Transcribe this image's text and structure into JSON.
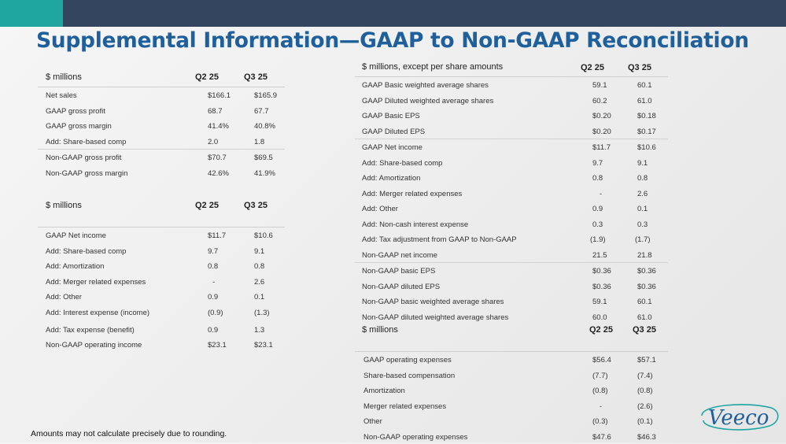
{
  "title": "Supplemental Information—GAAP to Non-GAAP Reconciliation",
  "footnote": "Amounts may not calculate precisely due to rounding.",
  "logo": "Veeco",
  "colors": {
    "header_bar": "#34455f",
    "accent": "#1fa6a0",
    "title": "#1f5f9b"
  },
  "gross_profit_table": {
    "header": {
      "label": "$ millions",
      "col1": "Q2 25",
      "col2": "Q3 25"
    },
    "rows": [
      {
        "label": "Net sales",
        "v1": "$166.1",
        "v2": "$165.9"
      },
      {
        "label": "GAAP gross profit",
        "v1": "68.7",
        "v2": "67.7"
      },
      {
        "label": "GAAP gross margin",
        "v1": "41.4%",
        "v2": "40.8%"
      },
      {
        "label": "Add: Share-based comp",
        "v1": "2.0",
        "v2": "1.8"
      },
      {
        "label": "Non-GAAP gross profit",
        "v1": "$70.7",
        "v2": "$69.5"
      },
      {
        "label": "Non-GAAP gross margin",
        "v1": "42.6%",
        "v2": "41.9%"
      }
    ]
  },
  "operating_income_table": {
    "header": {
      "label": "$ millions",
      "col1": "Q2 25",
      "col2": "Q3 25"
    },
    "rows": [
      {
        "label": "GAAP Net income",
        "v1": "$11.7",
        "v2": "$10.6"
      },
      {
        "label": "Add: Share-based comp",
        "v1": "9.7",
        "v2": "9.1"
      },
      {
        "label": "Add: Amortization",
        "v1": "0.8",
        "v2": "0.8"
      },
      {
        "label": "Add: Merger related expenses",
        "v1": "-",
        "v2": "2.6"
      },
      {
        "label": "Add: Other",
        "v1": "0.9",
        "v2": "0.1"
      },
      {
        "label": "Add: Interest expense (income)",
        "v1": "(0.9)",
        "v2": "(1.3)"
      },
      {
        "label": "Add: Tax expense (benefit)",
        "v1": "0.9",
        "v2": "1.3"
      },
      {
        "label": "Non-GAAP operating income",
        "v1": "$23.1",
        "v2": "$23.1"
      }
    ]
  },
  "net_income_table": {
    "header": {
      "label": "$ millions, except per share amounts",
      "col1": "Q2 25",
      "col2": "Q3 25"
    },
    "rows": [
      {
        "label": "GAAP Basic weighted average shares",
        "v1": "59.1",
        "v2": "60.1"
      },
      {
        "label": "GAAP Diluted weighted average shares",
        "v1": "60.2",
        "v2": "61.0"
      },
      {
        "label": "GAAP Basic EPS",
        "v1": "$0.20",
        "v2": "$0.18"
      },
      {
        "label": "GAAP Diluted EPS",
        "v1": "$0.20",
        "v2": "$0.17"
      },
      {
        "label": "GAAP Net income",
        "v1": "$11.7",
        "v2": "$10.6"
      },
      {
        "label": "Add: Share-based comp",
        "v1": "9.7",
        "v2": "9.1"
      },
      {
        "label": "Add: Amortization",
        "v1": "0.8",
        "v2": "0.8"
      },
      {
        "label": "Add: Merger related expenses",
        "v1": "-",
        "v2": "2.6"
      },
      {
        "label": "Add: Other",
        "v1": "0.9",
        "v2": "0.1"
      },
      {
        "label": "Add: Non-cash interest expense",
        "v1": "0.3",
        "v2": "0.3"
      },
      {
        "label": "Add: Tax adjustment from GAAP to Non-GAAP",
        "v1": "(1.9)",
        "v2": "(1.7)"
      },
      {
        "label": "Non-GAAP net income",
        "v1": "21.5",
        "v2": "21.8"
      },
      {
        "label": "Non-GAAP basic EPS",
        "v1": "$0.36",
        "v2": "$0.36"
      },
      {
        "label": "Non-GAAP diluted EPS",
        "v1": "$0.36",
        "v2": "$0.36"
      },
      {
        "label": "Non-GAAP basic weighted average shares",
        "v1": "59.1",
        "v2": "60.1"
      },
      {
        "label": "Non-GAAP diluted weighted average shares",
        "v1": "60.0",
        "v2": "61.0"
      }
    ]
  },
  "operating_expenses_table": {
    "header": {
      "label": "$ millions",
      "col1": "Q2 25",
      "col2": "Q3 25"
    },
    "rows": [
      {
        "label": "GAAP operating expenses",
        "v1": "$56.4",
        "v2": "$57.1"
      },
      {
        "label": "Share-based compensation",
        "v1": "(7.7)",
        "v2": "(7.4)"
      },
      {
        "label": "Amortization",
        "v1": "(0.8)",
        "v2": "(0.8)"
      },
      {
        "label": "Merger related expenses",
        "v1": "-",
        "v2": "(2.6)"
      },
      {
        "label": "Other",
        "v1": "(0.3)",
        "v2": "(0.1)"
      },
      {
        "label": "Non-GAAP operating expenses",
        "v1": "$47.6",
        "v2": "$46.3"
      }
    ]
  }
}
